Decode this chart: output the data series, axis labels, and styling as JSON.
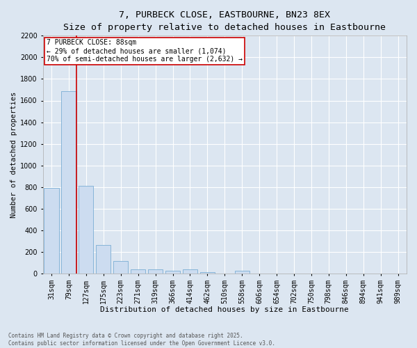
{
  "title": "7, PURBECK CLOSE, EASTBOURNE, BN23 8EX",
  "subtitle": "Size of property relative to detached houses in Eastbourne",
  "xlabel": "Distribution of detached houses by size in Eastbourne",
  "ylabel": "Number of detached properties",
  "categories": [
    "31sqm",
    "79sqm",
    "127sqm",
    "175sqm",
    "223sqm",
    "271sqm",
    "319sqm",
    "366sqm",
    "414sqm",
    "462sqm",
    "510sqm",
    "558sqm",
    "606sqm",
    "654sqm",
    "702sqm",
    "750sqm",
    "798sqm",
    "846sqm",
    "894sqm",
    "941sqm",
    "989sqm"
  ],
  "values": [
    790,
    1690,
    810,
    265,
    115,
    40,
    40,
    25,
    40,
    10,
    0,
    25,
    0,
    0,
    0,
    0,
    0,
    0,
    0,
    0,
    0
  ],
  "bar_color": "#ccdcf0",
  "bar_edge_color": "#7aadd4",
  "vline_color": "#cc0000",
  "vline_pos": 1.43,
  "annotation_text": "7 PURBECK CLOSE: 88sqm\n← 29% of detached houses are smaller (1,074)\n70% of semi-detached houses are larger (2,632) →",
  "annotation_box_facecolor": "#ffffff",
  "annotation_box_edgecolor": "#cc0000",
  "ylim": [
    0,
    2200
  ],
  "yticks": [
    0,
    200,
    400,
    600,
    800,
    1000,
    1200,
    1400,
    1600,
    1800,
    2000,
    2200
  ],
  "bg_color": "#dce6f1",
  "grid_color": "#ffffff",
  "title_fontsize": 9.5,
  "subtitle_fontsize": 8.5,
  "xlabel_fontsize": 8,
  "ylabel_fontsize": 7.5,
  "tick_fontsize": 7,
  "annotation_fontsize": 7,
  "footer_fontsize": 5.5,
  "footer": "Contains HM Land Registry data © Crown copyright and database right 2025.\nContains public sector information licensed under the Open Government Licence v3.0."
}
